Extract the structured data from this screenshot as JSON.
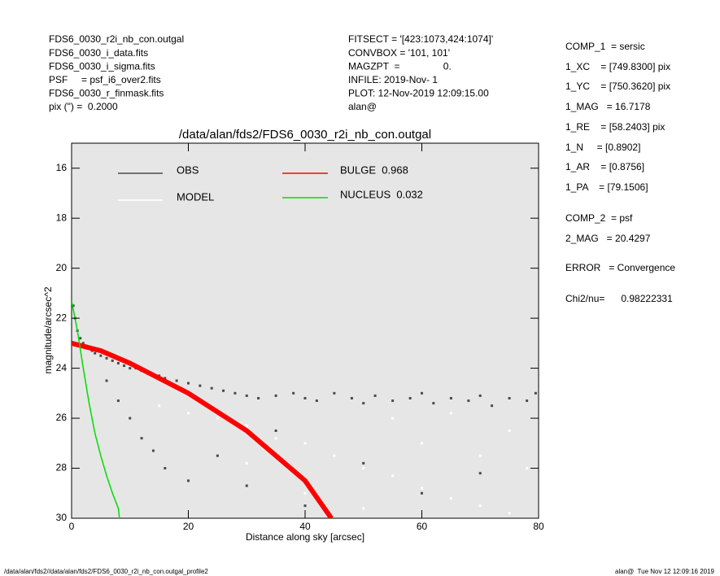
{
  "header_left": [
    "FDS6_0030_r2i_nb_con.outgal",
    "FDS6_0030_i_data.fits",
    "FDS6_0030_i_sigma.fits",
    "PSF     = psf_i6_over2.fits",
    "FDS6_0030_r_finmask.fits",
    "pix (\") =  0.2000"
  ],
  "header_middle": [
    "FITSECT = '[423:1073,424:1074]'",
    "CONVBOX = '101, 101'",
    "MAGZPT  =                0.",
    "INFILE: 2019-Nov- 1",
    "PLOT: 12-Nov-2019 12:09:15.00",
    "alan@"
  ],
  "parameters": [
    "COMP_1  = sersic",
    "1_XC    = [749.8300] pix",
    "1_YC    = [750.3620] pix",
    "1_MAG   = 16.7178",
    "1_RE    = [58.2403] pix",
    "1_N     = [0.8902]",
    "1_AR    = [0.8756]",
    "1_PA    = [79.1506]",
    "COMP_2  = psf",
    "2_MAG   = 20.4297",
    "ERROR   = Convergence",
    "Chi2/nu=      0.98222331"
  ],
  "footer_left": "/data/alan/fds2//data/alan/fds2/FDS6_0030_r2i_nb_con.outgal_profile2",
  "footer_right": "alan@  Tue Nov 12 12:09:16 2019",
  "chart_data": {
    "type": "scatter",
    "title": "/data/alan/fds2/FDS6_0030_r2i_nb_con.outgal",
    "xlabel": "Distance along sky [arcsec]",
    "ylabel": "magnitude/arcsec^2",
    "xlim": [
      0,
      80
    ],
    "ylim": [
      30,
      15
    ],
    "xticks": [
      0,
      20,
      40,
      60,
      80
    ],
    "yticks": [
      16,
      18,
      20,
      22,
      24,
      26,
      28,
      30
    ],
    "background": "#e6e6e6",
    "series": [
      {
        "name": "OBS",
        "color": "#4a4a4a",
        "kind": "points",
        "x": [
          0.3,
          0.6,
          1,
          1.5,
          2,
          2.5,
          3,
          3.5,
          4,
          5,
          6,
          7,
          8,
          9,
          10,
          11,
          12,
          13,
          14,
          15,
          16,
          18,
          20,
          22,
          24,
          26,
          28,
          30,
          32,
          35,
          38,
          40,
          42,
          45,
          48,
          50,
          52,
          55,
          58,
          60,
          62,
          65,
          68,
          70,
          72,
          75,
          78,
          79.5,
          6,
          8,
          10,
          12,
          14,
          16,
          20,
          25,
          30,
          35,
          40,
          50,
          60,
          70
        ],
        "values": [
          21.5,
          22.0,
          22.5,
          22.8,
          23.0,
          23.1,
          23.2,
          23.3,
          23.4,
          23.5,
          23.6,
          23.7,
          23.8,
          23.9,
          24.0,
          24.0,
          24.1,
          24.2,
          24.3,
          24.3,
          24.4,
          24.5,
          24.6,
          24.7,
          24.8,
          24.9,
          25.0,
          25.1,
          25.2,
          25.1,
          25.0,
          25.2,
          25.3,
          25.0,
          25.2,
          25.4,
          25.1,
          25.3,
          25.2,
          25.0,
          25.4,
          25.2,
          25.3,
          25.1,
          25.5,
          25.2,
          25.3,
          25.0,
          24.5,
          25.3,
          26.0,
          26.8,
          27.3,
          28.0,
          28.5,
          27.5,
          28.7,
          26.5,
          29.5,
          27.8,
          29.0,
          28.2
        ]
      },
      {
        "name": "MODEL",
        "color": "#ffffff",
        "kind": "points",
        "x": [
          15,
          20,
          25,
          30,
          35,
          40,
          45,
          50,
          55,
          60,
          65,
          70,
          75,
          78,
          30,
          40,
          50,
          60,
          70,
          75,
          55,
          65
        ],
        "values": [
          25.5,
          25.8,
          26.0,
          26.3,
          26.8,
          27.0,
          27.5,
          28.0,
          28.3,
          28.8,
          29.2,
          29.5,
          29.8,
          28.0,
          27.8,
          29.0,
          29.6,
          27.0,
          27.5,
          26.5,
          26.0,
          25.8
        ]
      },
      {
        "name": "BULGE  0.968",
        "color": "#ff0000",
        "kind": "line",
        "x": [
          0,
          5,
          10,
          20,
          30,
          40,
          44.5
        ],
        "values": [
          23.0,
          23.3,
          23.8,
          25.0,
          26.5,
          28.5,
          30.0
        ]
      },
      {
        "name": "NUCLEUS  0.032",
        "color": "#00dd00",
        "kind": "line",
        "x": [
          0,
          1,
          2,
          3,
          4,
          5,
          6,
          7,
          8,
          8.2
        ],
        "values": [
          21.3,
          22.5,
          24.0,
          25.4,
          26.6,
          27.5,
          28.3,
          29.0,
          29.6,
          30.0
        ]
      }
    ]
  }
}
